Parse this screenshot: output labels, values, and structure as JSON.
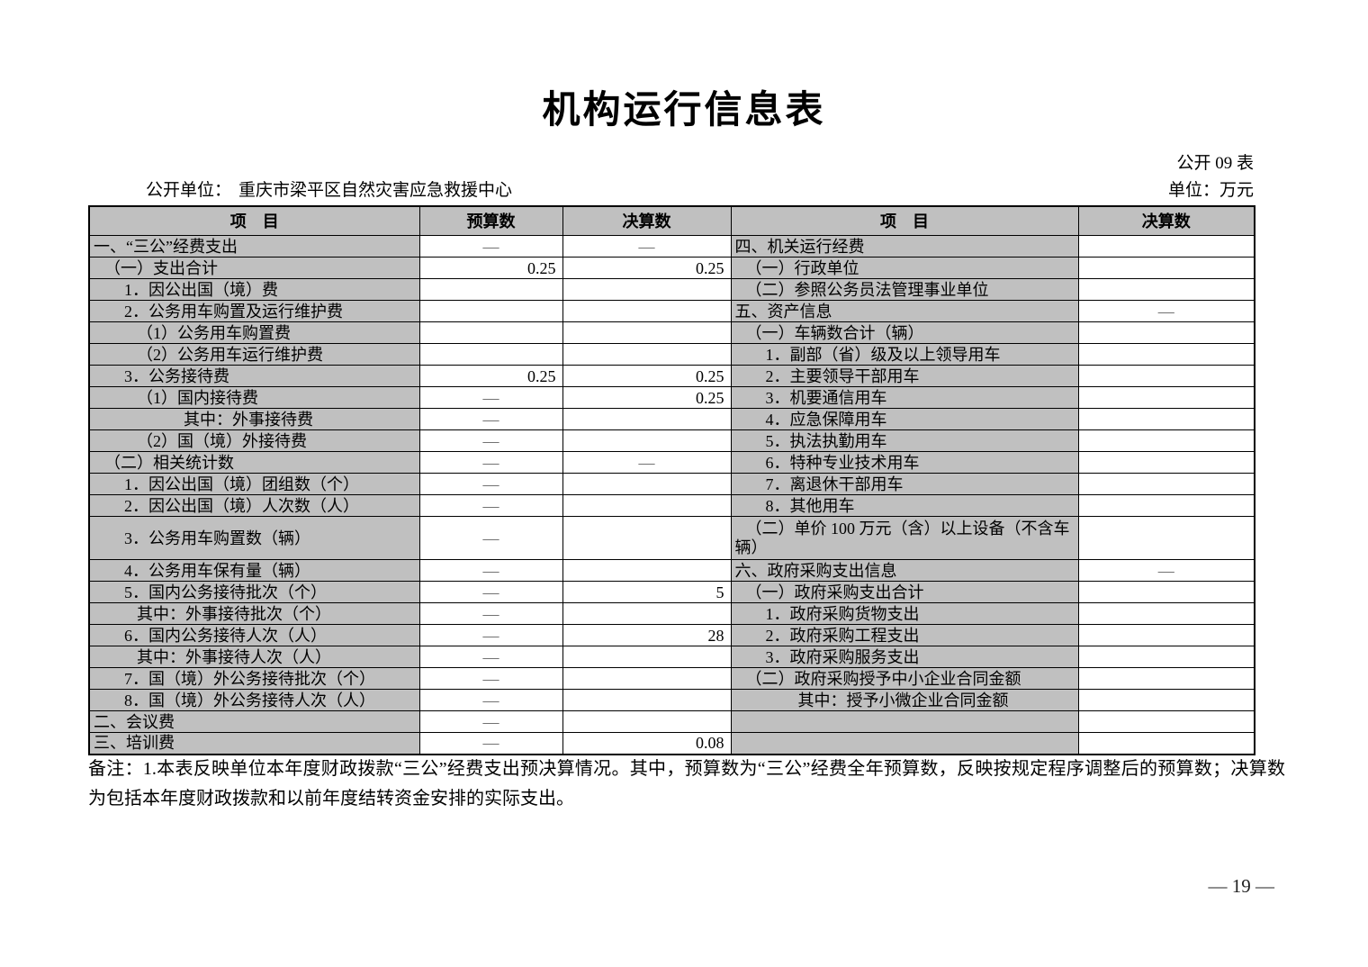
{
  "page": {
    "title": "机构运行信息表",
    "table_no": "公开 09 表",
    "unit_label": "公开单位：",
    "unit_name": "重庆市梁平区自然灾害应急救援中心",
    "currency_label": "单位：万元",
    "remark": "备注：1.本表反映单位本年度财政拨款“三公”经费支出预决算情况。其中，预算数为“三公”经费全年预算数，反映按规定程序调整后的预算数；决算数为包括本年度财政拨款和以前年度结转资金安排的实际支出。",
    "page_number": "— 19 —"
  },
  "colors": {
    "cell_bg": "#c0c0c0",
    "border": "#000000",
    "dash": "#606060",
    "text": "#000000"
  },
  "table": {
    "headers": [
      "项　目",
      "预算数",
      "决算数",
      "项　目",
      "决算数"
    ],
    "rows": [
      {
        "left": {
          "label": "一、“三公”经费支出",
          "level": 0,
          "budget": "—",
          "final": "—"
        },
        "right": {
          "label": "四、机关运行经费",
          "level": 0,
          "final": ""
        },
        "tall": false
      },
      {
        "left": {
          "label": "（一）支出合计",
          "level": 1,
          "budget": "0.25",
          "final": "0.25"
        },
        "right": {
          "label": "（一）行政单位",
          "level": 1,
          "final": ""
        },
        "tall": false
      },
      {
        "left": {
          "label": "1．因公出国（境）费",
          "level": 2,
          "budget": "",
          "final": ""
        },
        "right": {
          "label": "（二）参照公务员法管理事业单位",
          "level": 1,
          "final": ""
        },
        "tall": false
      },
      {
        "left": {
          "label": "2．公务用车购置及运行维护费",
          "level": 2,
          "budget": "",
          "final": ""
        },
        "right": {
          "label": "五、资产信息",
          "level": 0,
          "final": "—"
        },
        "tall": false
      },
      {
        "left": {
          "label": "（1）公务用车购置费",
          "level": 3,
          "budget": "",
          "final": ""
        },
        "right": {
          "label": "（一）车辆数合计（辆）",
          "level": 1,
          "final": ""
        },
        "tall": false
      },
      {
        "left": {
          "label": "（2）公务用车运行维护费",
          "level": 3,
          "budget": "",
          "final": ""
        },
        "right": {
          "label": "1．副部（省）级及以上领导用车",
          "level": 2,
          "final": ""
        },
        "tall": false
      },
      {
        "left": {
          "label": "3．公务接待费",
          "level": 2,
          "budget": "0.25",
          "final": "0.25"
        },
        "right": {
          "label": "2．主要领导干部用车",
          "level": 2,
          "final": ""
        },
        "tall": false
      },
      {
        "left": {
          "label": "（1）国内接待费",
          "level": 3,
          "budget": "—",
          "final": "0.25"
        },
        "right": {
          "label": "3．机要通信用车",
          "level": 2,
          "final": ""
        },
        "tall": false
      },
      {
        "left": {
          "label": "其中：外事接待费",
          "level": 5,
          "budget": "—",
          "final": ""
        },
        "right": {
          "label": "4．应急保障用车",
          "level": 2,
          "final": ""
        },
        "tall": false
      },
      {
        "left": {
          "label": "（2）国（境）外接待费",
          "level": 3,
          "budget": "—",
          "final": ""
        },
        "right": {
          "label": "5．执法执勤用车",
          "level": 2,
          "final": ""
        },
        "tall": false
      },
      {
        "left": {
          "label": "（二）相关统计数",
          "level": 1,
          "budget": "—",
          "final": "—"
        },
        "right": {
          "label": "6．特种专业技术用车",
          "level": 2,
          "final": ""
        },
        "tall": false
      },
      {
        "left": {
          "label": "1．因公出国（境）团组数（个）",
          "level": 2,
          "budget": "—",
          "final": ""
        },
        "right": {
          "label": "7．离退休干部用车",
          "level": 2,
          "final": ""
        },
        "tall": false
      },
      {
        "left": {
          "label": "2．因公出国（境）人次数（人）",
          "level": 2,
          "budget": "—",
          "final": ""
        },
        "right": {
          "label": "8．其他用车",
          "level": 2,
          "final": ""
        },
        "tall": false
      },
      {
        "left": {
          "label": "3．公务用车购置数（辆）",
          "level": 2,
          "budget": "—",
          "final": ""
        },
        "right": {
          "label": "（二）单价 100 万元（含）以上设备（不含车辆）",
          "level": "wrap",
          "final": ""
        },
        "tall": true
      },
      {
        "left": {
          "label": "4．公务用车保有量（辆）",
          "level": 2,
          "budget": "—",
          "final": ""
        },
        "right": {
          "label": "六、政府采购支出信息",
          "level": 0,
          "final": "—"
        },
        "tall": false
      },
      {
        "left": {
          "label": "5．国内公务接待批次（个）",
          "level": 2,
          "budget": "—",
          "final": "5"
        },
        "right": {
          "label": "（一）政府采购支出合计",
          "level": 1,
          "final": ""
        },
        "tall": false
      },
      {
        "left": {
          "label": "其中：外事接待批次（个）",
          "level": 3,
          "budget": "—",
          "final": ""
        },
        "right": {
          "label": "1．政府采购货物支出",
          "level": 2,
          "final": ""
        },
        "tall": false
      },
      {
        "left": {
          "label": "6．国内公务接待人次（人）",
          "level": 2,
          "budget": "—",
          "final": "28"
        },
        "right": {
          "label": "2．政府采购工程支出",
          "level": 2,
          "final": ""
        },
        "tall": false
      },
      {
        "left": {
          "label": "其中：外事接待人次（人）",
          "level": 3,
          "budget": "—",
          "final": ""
        },
        "right": {
          "label": "3．政府采购服务支出",
          "level": 2,
          "final": ""
        },
        "tall": false
      },
      {
        "left": {
          "label": "7．国（境）外公务接待批次（个）",
          "level": 2,
          "budget": "—",
          "final": ""
        },
        "right": {
          "label": "（二）政府采购授予中小企业合同金额",
          "level": 1,
          "final": ""
        },
        "tall": false
      },
      {
        "left": {
          "label": "8．国（境）外公务接待人次（人）",
          "level": 2,
          "budget": "—",
          "final": ""
        },
        "right": {
          "label": "其中：授予小微企业合同金额",
          "level": 4,
          "final": ""
        },
        "tall": false
      },
      {
        "left": {
          "label": "二、会议费",
          "level": 0,
          "budget": "—",
          "final": ""
        },
        "right": {
          "label": "",
          "level": 0,
          "final": ""
        },
        "tall": false
      },
      {
        "left": {
          "label": "三、培训费",
          "level": 0,
          "budget": "—",
          "final": "0.08"
        },
        "right": {
          "label": "",
          "level": 0,
          "final": ""
        },
        "tall": false
      }
    ]
  }
}
